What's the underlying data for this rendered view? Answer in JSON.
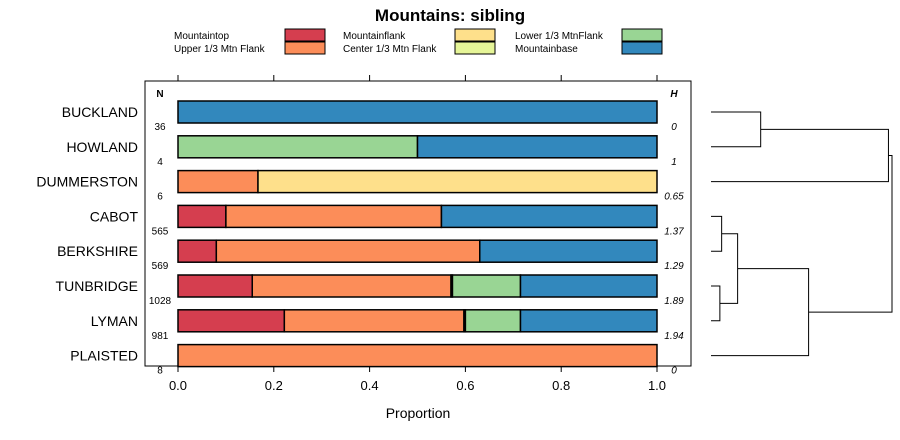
{
  "chart_data": {
    "type": "stacked-bar-horizontal",
    "title": "Mountains: sibling",
    "xlabel": "Proportion",
    "xlim": [
      -0.06,
      1.08
    ],
    "xticks": [
      0.0,
      0.2,
      0.4,
      0.6,
      0.8,
      1.0
    ],
    "xtick_labels": [
      "0.0",
      "0.2",
      "0.4",
      "0.6",
      "0.8",
      "1.0"
    ],
    "n_header": "N",
    "h_header": "H",
    "legend": [
      {
        "label": "Mountaintop",
        "color": "#d53e4f"
      },
      {
        "label": "Upper 1/3 Mtn Flank",
        "color": "#fc8d59"
      },
      {
        "label": "Mountainflank",
        "color": "#fee08b"
      },
      {
        "label": "Center 1/3 Mtn Flank",
        "color": "#e6f598"
      },
      {
        "label": "Lower 1/3 MtnFlank",
        "color": "#99d594"
      },
      {
        "label": "Mountainbase",
        "color": "#3288bd"
      }
    ],
    "categories": [
      "BUCKLAND",
      "HOWLAND",
      "DUMMERSTON",
      "CABOT",
      "BERKSHIRE",
      "TUNBRIDGE",
      "LYMAN",
      "PLAISTED"
    ],
    "n": [
      "36",
      "4",
      "6",
      "565",
      "569",
      "1028",
      "981",
      "8"
    ],
    "h": [
      "0",
      "1",
      "0.65",
      "1.37",
      "1.29",
      "1.89",
      "1.94",
      "0"
    ],
    "series": [
      {
        "name": "Mountaintop",
        "values": [
          0,
          0,
          0,
          0.1,
          0.08,
          0.155,
          0.222,
          0
        ]
      },
      {
        "name": "Upper 1/3 Mtn Flank",
        "values": [
          0,
          0,
          0.167,
          0.45,
          0.55,
          0.415,
          0.375,
          1.0
        ]
      },
      {
        "name": "Mountainflank",
        "values": [
          0,
          0,
          0.833,
          0,
          0,
          0.003,
          0.003,
          0
        ]
      },
      {
        "name": "Center 1/3 Mtn Flank",
        "values": [
          0,
          0,
          0,
          0,
          0,
          0,
          0,
          0
        ]
      },
      {
        "name": "Lower 1/3 MtnFlank",
        "values": [
          0,
          0.5,
          0,
          0,
          0,
          0.142,
          0.115,
          0
        ]
      },
      {
        "name": "Mountainbase",
        "values": [
          1.0,
          0.5,
          0,
          0.45,
          0.37,
          0.285,
          0.285,
          0
        ]
      }
    ],
    "dendrogram": {
      "merges": [
        {
          "left": "BUCKLAND",
          "right": "HOWLAND",
          "height": 0.28
        },
        {
          "left": "CABOT",
          "right": "BERKSHIRE",
          "height": 0.06
        },
        {
          "left": "TUNBRIDGE",
          "right": "LYMAN",
          "height": 0.05
        },
        {
          "left": "CABOT+BERKSHIRE",
          "right": "TUNBRIDGE+LYMAN",
          "height": 0.15
        },
        {
          "left": "CABOT+BERKSHIRE+TUNBRIDGE+LYMAN",
          "right": "PLAISTED",
          "height": 0.55
        },
        {
          "left": "BUCKLAND+HOWLAND",
          "right": "DUMMERSTON",
          "height": 1.0
        },
        {
          "left": "BUCKLAND+HOWLAND+DUMMERSTON",
          "right": "CABOT+BERKSHIRE+TUNBRIDGE+LYMAN+PLAISTED",
          "height": 1.02
        }
      ]
    }
  }
}
